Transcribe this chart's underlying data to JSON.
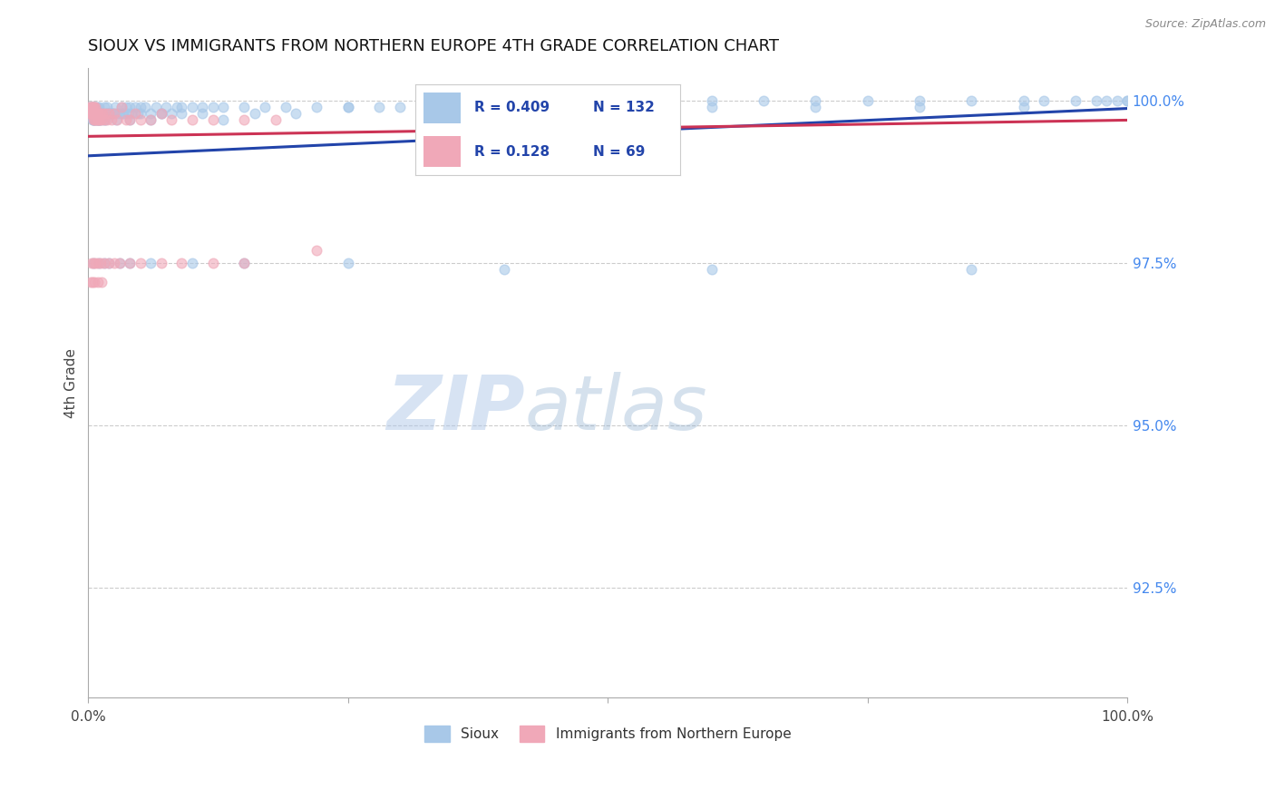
{
  "title": "SIOUX VS IMMIGRANTS FROM NORTHERN EUROPE 4TH GRADE CORRELATION CHART",
  "source": "Source: ZipAtlas.com",
  "ylabel": "4th Grade",
  "right_yticks": [
    "100.0%",
    "97.5%",
    "95.0%",
    "92.5%"
  ],
  "right_ytick_vals": [
    1.0,
    0.975,
    0.95,
    0.925
  ],
  "legend_r_blue": "0.409",
  "legend_n_blue": "132",
  "legend_r_pink": "0.128",
  "legend_n_pink": "69",
  "color_blue": "#a8c8e8",
  "color_pink": "#f0a8b8",
  "line_color_blue": "#2244aa",
  "line_color_pink": "#cc3355",
  "watermark_zip": "ZIP",
  "watermark_atlas": "atlas",
  "xlim": [
    0.0,
    1.0
  ],
  "ylim": [
    0.908,
    1.005
  ],
  "grid_color": "#cccccc",
  "background": "#ffffff",
  "blue_x": [
    0.001,
    0.002,
    0.002,
    0.003,
    0.003,
    0.003,
    0.004,
    0.004,
    0.004,
    0.005,
    0.005,
    0.005,
    0.006,
    0.006,
    0.006,
    0.007,
    0.007,
    0.007,
    0.008,
    0.008,
    0.008,
    0.009,
    0.009,
    0.01,
    0.01,
    0.01,
    0.011,
    0.011,
    0.012,
    0.012,
    0.013,
    0.014,
    0.015,
    0.016,
    0.017,
    0.018,
    0.019,
    0.02,
    0.021,
    0.022,
    0.024,
    0.026,
    0.028,
    0.03,
    0.032,
    0.034,
    0.036,
    0.038,
    0.04,
    0.042,
    0.045,
    0.048,
    0.05,
    0.055,
    0.06,
    0.065,
    0.07,
    0.075,
    0.08,
    0.085,
    0.09,
    0.1,
    0.11,
    0.12,
    0.13,
    0.15,
    0.17,
    0.19,
    0.22,
    0.25,
    0.28,
    0.32,
    0.36,
    0.4,
    0.45,
    0.5,
    0.55,
    0.6,
    0.65,
    0.7,
    0.75,
    0.8,
    0.85,
    0.9,
    0.92,
    0.95,
    0.97,
    0.98,
    0.99,
    1.0,
    0.003,
    0.005,
    0.007,
    0.009,
    0.012,
    0.015,
    0.018,
    0.022,
    0.027,
    0.033,
    0.04,
    0.05,
    0.06,
    0.07,
    0.09,
    0.11,
    0.13,
    0.16,
    0.2,
    0.25,
    0.3,
    0.35,
    0.42,
    0.5,
    0.6,
    0.7,
    0.8,
    0.9,
    1.0,
    0.005,
    0.01,
    0.015,
    0.02,
    0.03,
    0.04,
    0.06,
    0.1,
    0.15,
    0.25,
    0.4,
    0.6,
    0.85
  ],
  "blue_y": [
    0.999,
    0.998,
    0.999,
    0.998,
    0.999,
    0.998,
    0.997,
    0.998,
    0.999,
    0.997,
    0.998,
    0.999,
    0.997,
    0.998,
    0.999,
    0.997,
    0.998,
    0.999,
    0.997,
    0.998,
    0.999,
    0.997,
    0.998,
    0.997,
    0.998,
    0.999,
    0.997,
    0.998,
    0.997,
    0.998,
    0.998,
    0.998,
    0.999,
    0.997,
    0.998,
    0.999,
    0.998,
    0.998,
    0.998,
    0.998,
    0.998,
    0.999,
    0.998,
    0.998,
    0.999,
    0.998,
    0.999,
    0.998,
    0.999,
    0.998,
    0.999,
    0.998,
    0.999,
    0.999,
    0.998,
    0.999,
    0.998,
    0.999,
    0.998,
    0.999,
    0.999,
    0.999,
    0.999,
    0.999,
    0.999,
    0.999,
    0.999,
    0.999,
    0.999,
    0.999,
    0.999,
    1.0,
    1.0,
    1.0,
    1.0,
    1.0,
    1.0,
    1.0,
    1.0,
    1.0,
    1.0,
    1.0,
    1.0,
    1.0,
    1.0,
    1.0,
    1.0,
    1.0,
    1.0,
    1.0,
    0.998,
    0.997,
    0.998,
    0.997,
    0.998,
    0.997,
    0.998,
    0.998,
    0.997,
    0.998,
    0.997,
    0.998,
    0.997,
    0.998,
    0.998,
    0.998,
    0.997,
    0.998,
    0.998,
    0.999,
    0.999,
    0.999,
    0.999,
    0.999,
    0.999,
    0.999,
    0.999,
    0.999,
    1.0,
    0.975,
    0.975,
    0.975,
    0.975,
    0.975,
    0.975,
    0.975,
    0.975,
    0.975,
    0.975,
    0.974,
    0.974,
    0.974
  ],
  "blue_sizes": [
    60,
    60,
    60,
    60,
    60,
    60,
    60,
    60,
    60,
    60,
    60,
    60,
    60,
    60,
    60,
    60,
    60,
    60,
    60,
    60,
    60,
    60,
    60,
    60,
    60,
    60,
    60,
    60,
    60,
    60,
    60,
    60,
    60,
    60,
    60,
    60,
    60,
    60,
    60,
    60,
    60,
    60,
    60,
    60,
    60,
    60,
    60,
    60,
    60,
    60,
    60,
    60,
    60,
    60,
    60,
    60,
    60,
    60,
    60,
    60,
    60,
    60,
    60,
    60,
    60,
    60,
    60,
    60,
    60,
    60,
    60,
    60,
    60,
    60,
    60,
    60,
    60,
    60,
    60,
    60,
    60,
    60,
    60,
    60,
    60,
    60,
    60,
    60,
    60,
    60,
    60,
    60,
    60,
    60,
    60,
    60,
    60,
    60,
    60,
    60,
    60,
    60,
    60,
    60,
    60,
    60,
    60,
    60,
    60,
    60,
    60,
    60,
    60,
    60,
    60,
    60,
    60,
    60,
    60,
    60,
    60,
    60,
    60,
    60,
    60,
    60,
    60,
    60,
    60,
    60,
    60,
    60
  ],
  "pink_x": [
    0.001,
    0.001,
    0.002,
    0.002,
    0.003,
    0.003,
    0.003,
    0.004,
    0.004,
    0.004,
    0.005,
    0.005,
    0.005,
    0.006,
    0.006,
    0.006,
    0.007,
    0.007,
    0.007,
    0.008,
    0.008,
    0.009,
    0.009,
    0.01,
    0.01,
    0.011,
    0.012,
    0.013,
    0.014,
    0.015,
    0.016,
    0.018,
    0.02,
    0.022,
    0.025,
    0.028,
    0.032,
    0.036,
    0.04,
    0.045,
    0.05,
    0.06,
    0.07,
    0.08,
    0.1,
    0.12,
    0.15,
    0.18,
    0.22,
    0.003,
    0.005,
    0.007,
    0.009,
    0.012,
    0.015,
    0.02,
    0.025,
    0.03,
    0.04,
    0.05,
    0.07,
    0.09,
    0.12,
    0.15,
    0.002,
    0.004,
    0.006,
    0.009,
    0.013
  ],
  "pink_y": [
    0.999,
    0.998,
    0.999,
    0.998,
    0.999,
    0.998,
    0.999,
    0.998,
    0.999,
    0.998,
    0.997,
    0.998,
    0.999,
    0.997,
    0.998,
    0.999,
    0.997,
    0.998,
    0.999,
    0.997,
    0.998,
    0.997,
    0.998,
    0.997,
    0.998,
    0.997,
    0.998,
    0.997,
    0.998,
    0.997,
    0.998,
    0.997,
    0.998,
    0.997,
    0.998,
    0.997,
    0.999,
    0.997,
    0.997,
    0.998,
    0.997,
    0.997,
    0.998,
    0.997,
    0.997,
    0.997,
    0.997,
    0.997,
    0.977,
    0.975,
    0.975,
    0.975,
    0.975,
    0.975,
    0.975,
    0.975,
    0.975,
    0.975,
    0.975,
    0.975,
    0.975,
    0.975,
    0.975,
    0.975,
    0.972,
    0.972,
    0.972,
    0.972,
    0.972
  ],
  "pink_sizes": [
    60,
    60,
    60,
    60,
    60,
    60,
    60,
    60,
    60,
    60,
    60,
    60,
    60,
    60,
    60,
    60,
    60,
    60,
    60,
    60,
    60,
    60,
    60,
    60,
    60,
    60,
    60,
    60,
    60,
    60,
    60,
    60,
    60,
    60,
    60,
    60,
    60,
    60,
    60,
    60,
    60,
    60,
    60,
    60,
    60,
    60,
    60,
    60,
    60,
    60,
    60,
    60,
    60,
    60,
    60,
    60,
    60,
    60,
    60,
    60,
    60,
    60,
    60,
    60,
    60,
    60,
    60,
    60,
    60
  ],
  "blue_line_x": [
    0.0,
    1.0
  ],
  "blue_line_y": [
    0.9915,
    0.9988
  ],
  "pink_line_x": [
    0.0,
    0.6
  ],
  "pink_line_y": [
    0.9945,
    0.996
  ]
}
